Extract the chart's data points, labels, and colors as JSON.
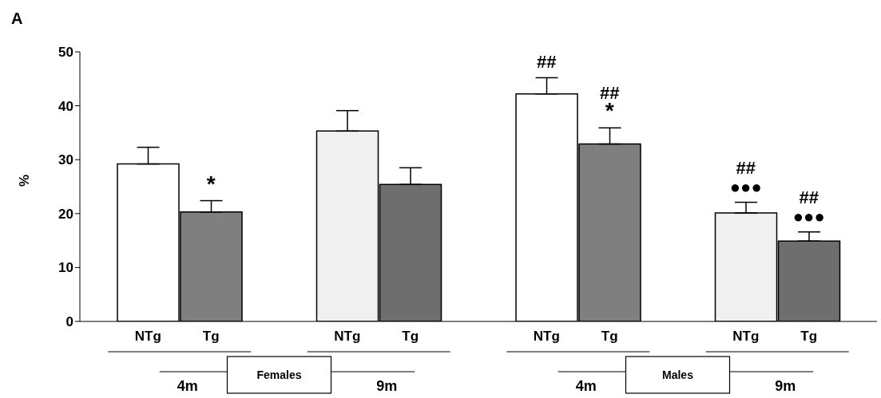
{
  "chart_data": {
    "type": "bar",
    "ylabel": "%",
    "categories": [
      "NTg",
      "Tg",
      "NTg",
      "Tg",
      "NTg",
      "Tg",
      "NTg",
      "Tg"
    ],
    "values": [
      29.2,
      20.3,
      35.3,
      25.4,
      42.2,
      32.9,
      20.1,
      14.9
    ],
    "colors": [
      "#ffffff",
      "#7f7f7f",
      "#f0f0f0",
      "#6e6e6e",
      "#ffffff",
      "#7f7f7f",
      "#f0f0f0",
      "#6e6e6e"
    ],
    "errors": [
      [
        29.2,
        32.3
      ],
      [
        20.3,
        22.4
      ],
      [
        35.3,
        39.1
      ],
      [
        25.4,
        28.5
      ],
      [
        42.2,
        45.2
      ],
      [
        32.9,
        35.9
      ],
      [
        20.1,
        22.1
      ],
      [
        14.9,
        16.6
      ]
    ],
    "ylim": [
      0,
      50
    ],
    "yticks": [
      0,
      10,
      20,
      30,
      40,
      50
    ],
    "annotations": [
      "A",
      "*",
      "##",
      "*",
      "##",
      "●●●",
      "##",
      "●●●",
      "##",
      "4m",
      "Females",
      "9m",
      "4m",
      "Males",
      "9m"
    ]
  }
}
